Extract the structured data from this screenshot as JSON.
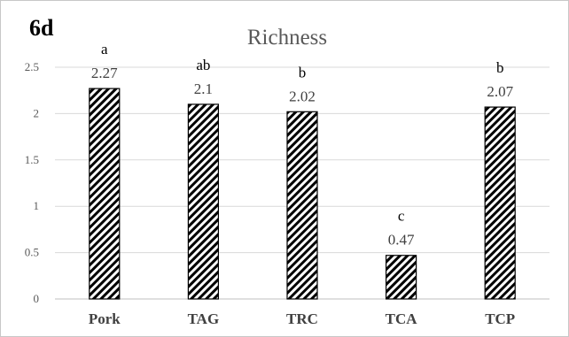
{
  "panel_label": "6d",
  "chart_data": {
    "type": "bar",
    "title": "Richness",
    "categories": [
      "Pork",
      "TAG",
      "TRC",
      "TCA",
      "TCP"
    ],
    "values": [
      2.27,
      2.1,
      2.02,
      0.47,
      2.07
    ],
    "value_labels": [
      "2.27",
      "2.1",
      "2.02",
      "0.47",
      "2.07"
    ],
    "significance_letters": [
      "a",
      "ab",
      "b",
      "c",
      "b"
    ],
    "ylim": [
      0,
      2.5
    ],
    "yticks": [
      "0",
      "0.5",
      "1",
      "1.5",
      "2",
      "2.5"
    ],
    "grid": true,
    "xlabel": "",
    "ylabel": "",
    "bar_pattern": "diagonal-hatch",
    "colors": {
      "bar_fill": "#ffffff",
      "hatch": "#000000",
      "grid": "#d9d9d9",
      "text": "#595959"
    }
  }
}
